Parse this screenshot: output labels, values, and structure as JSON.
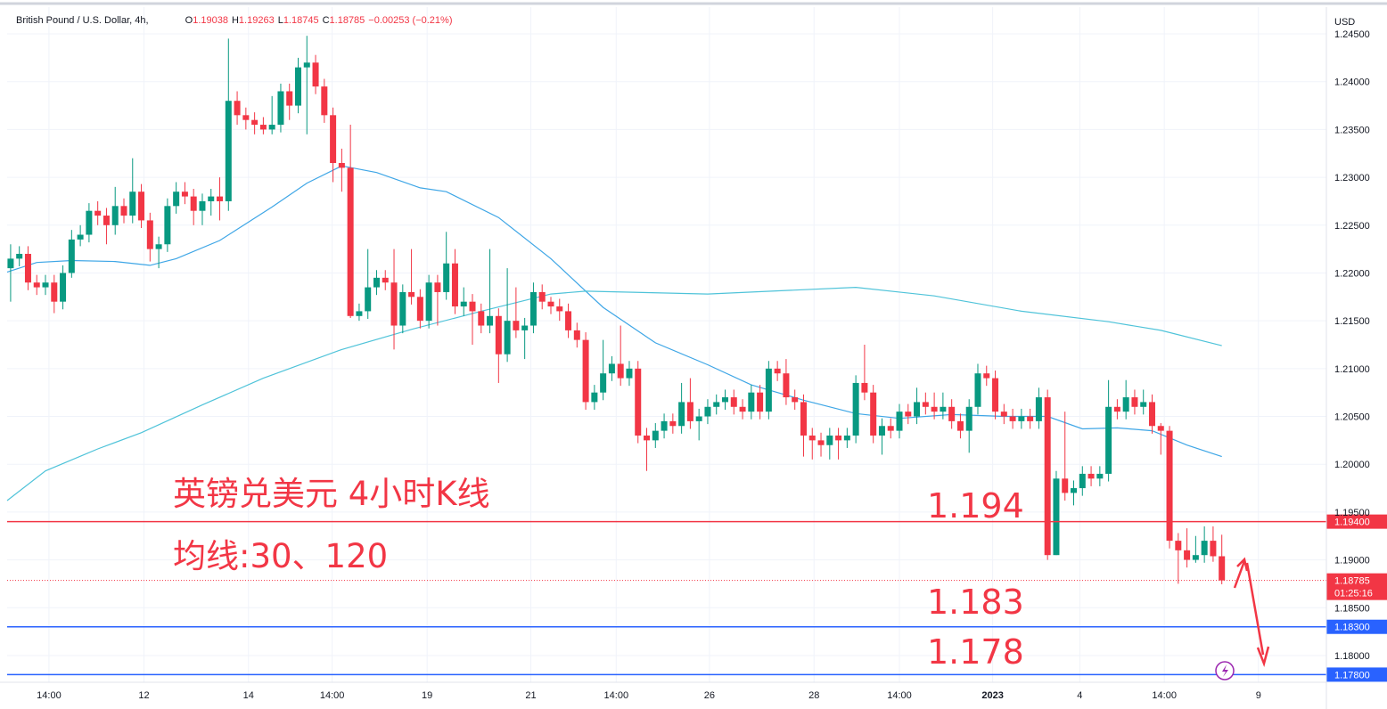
{
  "chart_data": {
    "type": "candlestick",
    "title": "British Pound / U.S. Dollar, 4h,",
    "header_values": [
      {
        "key": "O",
        "value": "1.19038"
      },
      {
        "key": "H",
        "value": "1.19263"
      },
      {
        "key": "L",
        "value": "1.18745"
      },
      {
        "key": "C",
        "value": "1.18785"
      },
      {
        "key": "",
        "value": "−0.00253 (−0.21%)"
      }
    ],
    "y_axis_label": "USD",
    "up_color": "#089981",
    "down_color": "#f23645",
    "ylim": [
      1.1772,
      1.2478
    ],
    "yticks": [
      {
        "value": 1.18,
        "label": "1.18000"
      },
      {
        "value": 1.185,
        "label": "1.18500"
      },
      {
        "value": 1.19,
        "label": "1.19000"
      },
      {
        "value": 1.195,
        "label": "1.19500"
      },
      {
        "value": 1.2,
        "label": "1.20000"
      },
      {
        "value": 1.205,
        "label": "1.20500"
      },
      {
        "value": 1.21,
        "label": "1.21000"
      },
      {
        "value": 1.215,
        "label": "1.21500"
      },
      {
        "value": 1.22,
        "label": "1.22000"
      },
      {
        "value": 1.225,
        "label": "1.22500"
      },
      {
        "value": 1.23,
        "label": "1.23000"
      },
      {
        "value": 1.235,
        "label": "1.23500"
      },
      {
        "value": 1.24,
        "label": "1.24000"
      },
      {
        "value": 1.245,
        "label": "1.24500"
      }
    ],
    "xlim": [
      -0.4,
      151
    ],
    "xticks": [
      {
        "value": 4.4,
        "label": "14:00"
      },
      {
        "value": 15.3,
        "label": "12"
      },
      {
        "value": 27.3,
        "label": "14"
      },
      {
        "value": 36.9,
        "label": "14:00"
      },
      {
        "value": 47.8,
        "label": "19"
      },
      {
        "value": 59.7,
        "label": "21"
      },
      {
        "value": 69.5,
        "label": "14:00"
      },
      {
        "value": 80.2,
        "label": "26"
      },
      {
        "value": 92.2,
        "label": "28"
      },
      {
        "value": 102,
        "label": "14:00"
      },
      {
        "value": 112.7,
        "label": "2023"
      },
      {
        "value": 122.7,
        "label": "4"
      },
      {
        "value": 132.4,
        "label": "14:00"
      },
      {
        "value": 143.2,
        "label": "9"
      }
    ],
    "grid": true,
    "open": [
      1.2205,
      1.2215,
      1.222,
      1.219,
      1.2185,
      1.219,
      1.217,
      1.22,
      1.2235,
      1.224,
      1.2265,
      1.226,
      1.225,
      1.227,
      1.226,
      1.2285,
      1.2255,
      1.2225,
      1.223,
      1.227,
      1.2285,
      1.228,
      1.2265,
      1.2275,
      1.228,
      1.2275,
      1.238,
      1.2365,
      1.236,
      1.2355,
      1.235,
      1.2355,
      1.239,
      1.2375,
      1.2415,
      1.242,
      1.2395,
      1.2365,
      1.2315,
      1.231,
      1.2155,
      1.216,
      1.2185,
      1.2195,
      1.219,
      1.2145,
      1.218,
      1.2175,
      1.215,
      1.219,
      1.218,
      1.221,
      1.2165,
      1.217,
      1.216,
      1.2145,
      1.2155,
      1.2115,
      1.215,
      1.214,
      1.2145,
      1.218,
      1.217,
      1.2165,
      1.216,
      1.214,
      1.213,
      1.2065,
      1.2075,
      1.2095,
      1.2105,
      1.209,
      1.21,
      1.203,
      1.2025,
      1.2035,
      1.2045,
      1.204,
      1.2065,
      1.2045,
      1.205,
      1.206,
      1.2065,
      1.207,
      1.206,
      1.2055,
      1.2075,
      1.2055,
      1.21,
      1.2095,
      1.207,
      1.2065,
      1.203,
      1.2025,
      1.202,
      1.203,
      1.2025,
      1.203,
      1.2085,
      1.2075,
      1.203,
      1.204,
      1.2035,
      1.2055,
      1.205,
      1.2065,
      1.206,
      1.2055,
      1.206,
      1.2045,
      1.2035,
      1.206,
      1.2095,
      1.209,
      1.2055,
      1.205,
      1.2045,
      1.205,
      1.2045,
      1.207,
      1.1905,
      1.1985,
      1.197,
      1.1975,
      1.199,
      1.1985,
      1.199,
      1.206,
      1.2055,
      1.207,
      1.206,
      1.2065,
      1.204,
      1.2035,
      1.192,
      1.191,
      1.19,
      1.1905,
      1.192,
      1.19038
    ],
    "high": [
      1.223,
      1.2228,
      1.2228,
      1.2198,
      1.2198,
      1.2198,
      1.2208,
      1.2245,
      1.225,
      1.2273,
      1.2275,
      1.2268,
      1.229,
      1.2278,
      1.232,
      1.2293,
      1.2263,
      1.2238,
      1.2278,
      1.2295,
      1.2295,
      1.2288,
      1.2283,
      1.2288,
      1.23,
      1.2445,
      1.239,
      1.2373,
      1.2368,
      1.2363,
      1.2385,
      1.2398,
      1.2398,
      1.2425,
      1.2448,
      1.2428,
      1.2403,
      1.2373,
      1.233,
      1.2355,
      1.2168,
      1.2225,
      1.2203,
      1.2203,
      1.2225,
      1.2188,
      1.2225,
      1.2183,
      1.2198,
      1.2198,
      1.2243,
      1.2225,
      1.2185,
      1.2178,
      1.2168,
      1.2225,
      1.2163,
      1.2205,
      1.2185,
      1.2153,
      1.219,
      1.2188,
      1.2175,
      1.2173,
      1.2168,
      1.2148,
      1.2138,
      1.2083,
      1.213,
      1.2113,
      1.2145,
      1.2108,
      1.2108,
      1.2038,
      1.2043,
      1.2053,
      1.2053,
      1.2085,
      1.209,
      1.2058,
      1.2068,
      1.2073,
      1.2078,
      1.2078,
      1.2068,
      1.2083,
      1.2083,
      1.2108,
      1.2108,
      1.211,
      1.2078,
      1.2073,
      1.2038,
      1.2033,
      1.2038,
      1.2038,
      1.2038,
      1.2093,
      1.2125,
      1.2083,
      1.2048,
      1.2048,
      1.2063,
      1.2063,
      1.208,
      1.2075,
      1.2075,
      1.2075,
      1.2068,
      1.2053,
      1.2068,
      1.2105,
      1.2103,
      1.2098,
      1.2063,
      1.2058,
      1.2058,
      1.2058,
      1.208,
      1.2078,
      1.1993,
      1.2055,
      1.1983,
      1.1998,
      1.1998,
      1.1998,
      1.2088,
      1.2068,
      1.2088,
      1.2078,
      1.2078,
      1.2073,
      1.2043,
      1.204,
      1.1928,
      1.1933,
      1.1925,
      1.1935,
      1.1935,
      1.19263
    ],
    "low": [
      1.217,
      1.2207,
      1.2182,
      1.2177,
      1.2177,
      1.2158,
      1.2162,
      1.2195,
      1.2228,
      1.2232,
      1.225,
      1.223,
      1.224,
      1.2252,
      1.2252,
      1.2247,
      1.2212,
      1.2205,
      1.2222,
      1.2262,
      1.2272,
      1.225,
      1.225,
      1.226,
      1.2255,
      1.2265,
      1.2355,
      1.235,
      1.2345,
      1.2345,
      1.2345,
      1.2347,
      1.236,
      1.2367,
      1.2345,
      1.2387,
      1.2357,
      1.2295,
      1.2285,
      1.2153,
      1.215,
      1.2152,
      1.2177,
      1.2182,
      1.212,
      1.2137,
      1.2167,
      1.2142,
      1.2142,
      1.2145,
      1.2172,
      1.2157,
      1.2155,
      1.2125,
      1.2137,
      1.2137,
      1.2085,
      1.2107,
      1.2132,
      1.211,
      1.2137,
      1.2162,
      1.2157,
      1.215,
      1.2132,
      1.2122,
      1.2057,
      1.2057,
      1.2067,
      1.2087,
      1.2082,
      1.2082,
      1.2022,
      1.1993,
      1.2017,
      1.2027,
      1.2032,
      1.2032,
      1.2037,
      1.2025,
      1.2042,
      1.2052,
      1.2057,
      1.2052,
      1.2047,
      1.2047,
      1.2047,
      1.2047,
      1.2087,
      1.2062,
      1.2057,
      1.2008,
      1.2005,
      1.2008,
      1.2005,
      1.2005,
      1.2017,
      1.2022,
      1.2067,
      1.2022,
      1.201,
      1.2027,
      1.2027,
      1.2042,
      1.2042,
      1.2052,
      1.2047,
      1.2047,
      1.2037,
      1.2027,
      1.2012,
      1.2052,
      1.2082,
      1.2047,
      1.2042,
      1.2037,
      1.2037,
      1.2037,
      1.2037,
      1.19,
      1.1905,
      1.1962,
      1.1957,
      1.1967,
      1.1977,
      1.1977,
      1.1982,
      1.2047,
      1.2047,
      1.2052,
      1.2052,
      1.2032,
      1.201,
      1.1912,
      1.1875,
      1.1892,
      1.1897,
      1.1897,
      1.1898,
      1.18745
    ],
    "close": [
      1.2215,
      1.222,
      1.219,
      1.2185,
      1.219,
      1.217,
      1.22,
      1.2235,
      1.224,
      1.2265,
      1.226,
      1.225,
      1.227,
      1.226,
      1.2285,
      1.2255,
      1.2225,
      1.223,
      1.227,
      1.2285,
      1.228,
      1.2265,
      1.2275,
      1.228,
      1.2275,
      1.238,
      1.2365,
      1.236,
      1.2355,
      1.235,
      1.2355,
      1.239,
      1.2375,
      1.2415,
      1.242,
      1.2395,
      1.2365,
      1.2315,
      1.231,
      1.2155,
      1.216,
      1.2185,
      1.2195,
      1.219,
      1.2145,
      1.218,
      1.2175,
      1.215,
      1.219,
      1.218,
      1.221,
      1.2165,
      1.217,
      1.216,
      1.2145,
      1.2155,
      1.2115,
      1.215,
      1.214,
      1.2145,
      1.218,
      1.217,
      1.2165,
      1.216,
      1.214,
      1.213,
      1.2065,
      1.2075,
      1.2095,
      1.2105,
      1.209,
      1.21,
      1.203,
      1.2025,
      1.2035,
      1.2045,
      1.204,
      1.2065,
      1.2045,
      1.205,
      1.206,
      1.2065,
      1.207,
      1.206,
      1.2055,
      1.2075,
      1.2055,
      1.21,
      1.2095,
      1.207,
      1.2065,
      1.203,
      1.2025,
      1.202,
      1.203,
      1.2025,
      1.203,
      1.2085,
      1.2075,
      1.203,
      1.204,
      1.2035,
      1.2055,
      1.205,
      1.2065,
      1.206,
      1.2055,
      1.206,
      1.2045,
      1.2035,
      1.206,
      1.2095,
      1.209,
      1.2055,
      1.205,
      1.2045,
      1.205,
      1.2045,
      1.207,
      1.1905,
      1.1985,
      1.197,
      1.1975,
      1.199,
      1.1985,
      1.199,
      1.206,
      1.2055,
      1.207,
      1.206,
      1.2065,
      1.204,
      1.2035,
      1.192,
      1.191,
      1.19,
      1.1905,
      1.192,
      1.19038,
      1.18785
    ],
    "series": [
      {
        "color": "#3ea6e6",
        "x": [
          -0.4,
          3,
          7,
          12,
          16,
          19,
          24,
          30,
          34,
          38,
          42,
          47,
          50,
          56,
          62,
          68,
          74,
          80,
          85,
          91,
          97,
          102,
          108,
          114,
          119,
          123,
          127,
          131,
          135,
          139
        ],
        "values": [
          1.2201,
          1.2211,
          1.2213,
          1.2212,
          1.2208,
          1.2215,
          1.2234,
          1.2269,
          1.2294,
          1.2312,
          1.2305,
          1.2289,
          1.2285,
          1.2258,
          1.2215,
          1.2164,
          1.2127,
          1.2104,
          1.2083,
          1.2067,
          1.2053,
          1.2048,
          1.2052,
          1.205,
          1.205,
          1.2037,
          1.2038,
          1.2035,
          1.202,
          1.2008
        ]
      },
      {
        "color": "#4fc3d9",
        "x": [
          -0.4,
          4,
          10,
          15,
          22,
          29,
          38,
          46,
          54,
          62,
          66,
          80,
          97,
          106,
          116,
          126,
          132,
          139
        ],
        "values": [
          1.1962,
          1.1993,
          1.2016,
          1.2033,
          1.2062,
          1.209,
          1.212,
          1.2141,
          1.216,
          1.2178,
          1.2181,
          1.2178,
          1.2185,
          1.2176,
          1.216,
          1.2149,
          1.214,
          1.2124
        ]
      }
    ],
    "levels": [
      {
        "value": 1.194,
        "label": "1.19400",
        "color": "#f23645"
      },
      {
        "value": 1.183,
        "label": "1.18300",
        "color": "#2962ff"
      },
      {
        "value": 1.178,
        "label": "1.17800",
        "color": "#2962ff"
      }
    ],
    "last_price": {
      "value": 1.18785,
      "label": "1.18785",
      "countdown": "01:25:16",
      "color": "#f23645"
    },
    "annotations": [
      "英镑兑美元 4小时K线",
      "均线:30、120",
      "1.194",
      "1.183",
      "1.178"
    ]
  }
}
